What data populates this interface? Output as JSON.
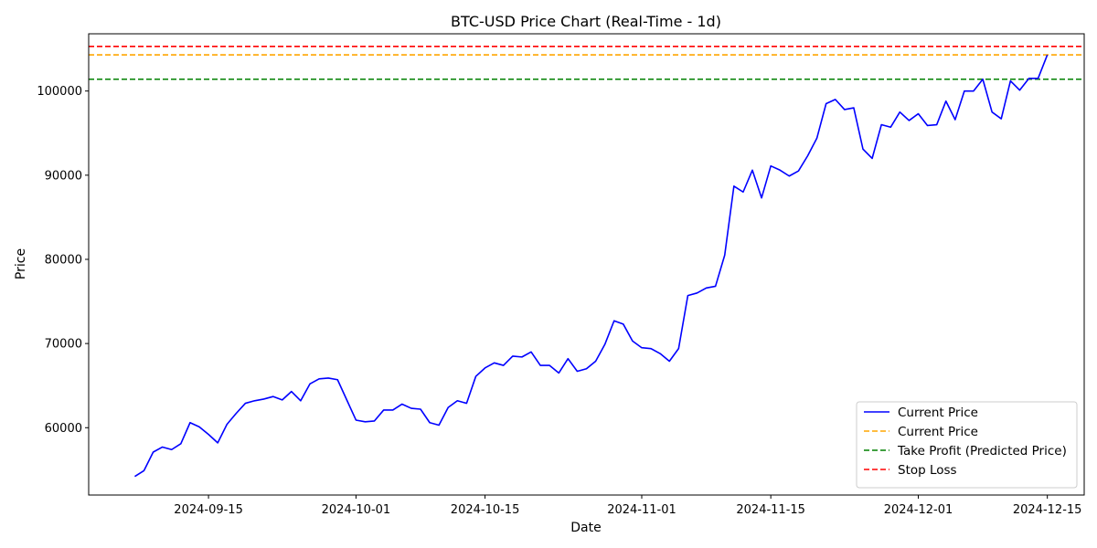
{
  "chart_data": {
    "type": "line",
    "title": "BTC-USD Price Chart (Real-Time - 1d)",
    "xlabel": "Date",
    "ylabel": "Price",
    "x_ticks": [
      "2024-09-15",
      "2024-10-01",
      "2024-10-15",
      "2024-11-01",
      "2024-11-15",
      "2024-12-01",
      "2024-12-15"
    ],
    "y_ticks": [
      60000,
      70000,
      80000,
      90000,
      100000
    ],
    "ylim": [
      52000,
      106800
    ],
    "xlim": [
      "2024-09-02",
      "2024-12-19"
    ],
    "legend_position": "bottom-right",
    "grid": false,
    "series": [
      {
        "name": "Current Price",
        "color": "#0000ff",
        "style": "solid",
        "start_date": "2024-09-07",
        "values": [
          54200,
          54900,
          57100,
          57700,
          57400,
          58100,
          60600,
          60100,
          59200,
          58200,
          60400,
          61700,
          62900,
          63200,
          63400,
          63700,
          63300,
          64300,
          63200,
          65200,
          65800,
          65900,
          65700,
          63300,
          60900,
          60700,
          60800,
          62100,
          62100,
          62800,
          62300,
          62200,
          60600,
          60300,
          62400,
          63200,
          62900,
          66100,
          67100,
          67700,
          67400,
          68500,
          68400,
          69000,
          67400,
          67400,
          66500,
          68200,
          66700,
          67000,
          67900,
          69900,
          72700,
          72300,
          70300,
          69500,
          69400,
          68800,
          67900,
          69400,
          75700,
          76000,
          76600,
          76800,
          80500,
          88700,
          88000,
          90600,
          87300,
          91100,
          90600,
          89900,
          90500,
          92300,
          94400,
          98500,
          99000,
          97800,
          98000,
          93100,
          92000,
          96000,
          95700,
          97500,
          96500,
          97300,
          95900,
          96000,
          98800,
          96600,
          100000,
          100000,
          101400,
          97500,
          96700,
          101200,
          100100,
          101500,
          101500,
          104300
        ]
      }
    ],
    "hlines": [
      {
        "name": "Current Price",
        "value": 104300,
        "color": "#ffa500"
      },
      {
        "name": "Take Profit (Predicted Price)",
        "value": 101400,
        "color": "#008000"
      },
      {
        "name": "Stop Loss",
        "value": 105300,
        "color": "#ff0000"
      }
    ]
  }
}
